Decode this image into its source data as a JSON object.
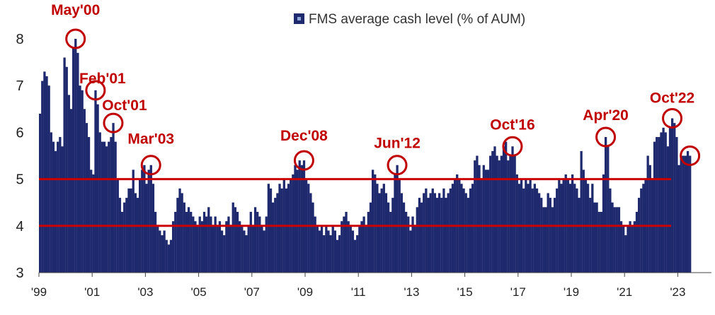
{
  "chart_data": {
    "type": "bar",
    "legend": {
      "label": "FMS average cash level (% of AUM)",
      "placement": "top-center"
    },
    "colors": {
      "bar": "#1f2a6e",
      "reference_line": "#cc0000",
      "annotation": "#c00000",
      "axis": "#444444"
    },
    "ylim": [
      3,
      8.6
    ],
    "yticks": [
      "3",
      "4",
      "5",
      "6",
      "7",
      "8"
    ],
    "xticks": [
      "'99",
      "'01",
      "'03",
      "'05",
      "'07",
      "'09",
      "'11",
      "'13",
      "'15",
      "'17",
      "'19",
      "'21",
      "'23"
    ],
    "reference_lines": [
      5,
      4
    ],
    "grid": false,
    "monthly_levels": [
      {
        "start": "1999-01",
        "values": [
          6.4,
          7.1,
          7.3,
          7.2,
          7.0,
          6.0,
          5.8,
          5.6,
          5.8,
          5.9,
          5.7,
          7.6,
          7.4,
          6.8,
          6.5,
          7.8,
          8.0,
          7.7,
          7.0,
          6.9,
          6.5,
          6.2,
          5.9,
          5.2
        ]
      }
    ],
    "annotations": [
      {
        "label": "May'00",
        "date": "2000-05",
        "value": 8.0
      },
      {
        "label": "Feb'01",
        "date": "2001-02",
        "value": 6.9
      },
      {
        "label": "Oct'01",
        "date": "2001-10",
        "value": 6.2
      },
      {
        "label": "Mar'03",
        "date": "2003-03",
        "value": 5.3
      },
      {
        "label": "Dec'08",
        "date": "2008-12",
        "value": 5.4
      },
      {
        "label": "Jun'12",
        "date": "2012-06",
        "value": 5.3
      },
      {
        "label": "Oct'16",
        "date": "2016-10",
        "value": 5.7
      },
      {
        "label": "Apr'20",
        "date": "2020-04",
        "value": 5.9
      },
      {
        "label": "Oct'22",
        "date": "2022-10",
        "value": 6.3
      },
      {
        "label": "",
        "date": "2023-06",
        "value": 5.5
      }
    ]
  }
}
